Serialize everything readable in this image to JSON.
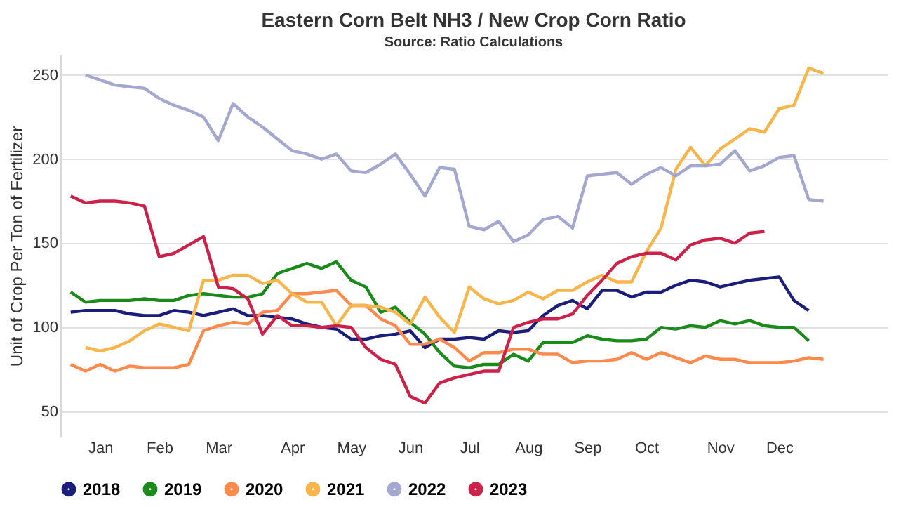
{
  "chart_data": {
    "type": "line",
    "title": "Eastern Corn Belt NH3 / New Crop Corn Ratio",
    "subtitle": "Source: Ratio Calculations",
    "ylabel": "Unit of Crop Per Ton of Fertilizer",
    "categories": [
      null,
      null,
      "Jan",
      null,
      null,
      null,
      "Feb",
      null,
      null,
      null,
      "Mar",
      null,
      null,
      null,
      null,
      "Apr",
      null,
      null,
      null,
      "May",
      null,
      null,
      null,
      "Jun",
      null,
      null,
      null,
      "Jul",
      null,
      null,
      null,
      "Aug",
      null,
      null,
      null,
      "Sep",
      null,
      null,
      null,
      "Oct",
      null,
      null,
      null,
      null,
      "Nov",
      null,
      null,
      null,
      "Dec",
      null,
      null,
      null
    ],
    "ylim": [
      35,
      262
    ],
    "yticks": [
      50,
      100,
      150,
      200,
      250
    ],
    "grid": "y",
    "legend": "bottom",
    "marker": "none",
    "line_style": "solid",
    "series": [
      {
        "name": "2018",
        "color": "#1b1d7a",
        "values": [
          109,
          110,
          110,
          110,
          108,
          107,
          107,
          110,
          109,
          107,
          109,
          111,
          107,
          107,
          106,
          105,
          102,
          100,
          99,
          93,
          93,
          95,
          96,
          98,
          88,
          93,
          93,
          94,
          93,
          98,
          97,
          98,
          107,
          113,
          116,
          111,
          122,
          122,
          118,
          121,
          121,
          125,
          128,
          127,
          124,
          126,
          128,
          129,
          130,
          116,
          110,
          null
        ]
      },
      {
        "name": "2019",
        "color": "#1a8a1a",
        "values": [
          121,
          115,
          116,
          116,
          116,
          117,
          116,
          116,
          119,
          120,
          119,
          118,
          118,
          120,
          132,
          135,
          138,
          135,
          139,
          128,
          124,
          109,
          112,
          103,
          96,
          85,
          77,
          76,
          78,
          78,
          84,
          80,
          91,
          91,
          91,
          95,
          93,
          92,
          92,
          93,
          100,
          99,
          101,
          100,
          104,
          102,
          104,
          101,
          100,
          100,
          92,
          null
        ]
      },
      {
        "name": "2020",
        "color": "#ff8a4c",
        "values": [
          78,
          74,
          78,
          74,
          77,
          76,
          76,
          76,
          78,
          98,
          101,
          103,
          102,
          109,
          110,
          120,
          120,
          121,
          122,
          113,
          113,
          105,
          101,
          90,
          90,
          93,
          88,
          80,
          85,
          85,
          87,
          87,
          84,
          84,
          79,
          80,
          80,
          81,
          85,
          81,
          85,
          82,
          79,
          83,
          81,
          81,
          79,
          79,
          79,
          80,
          82,
          81
        ]
      },
      {
        "name": "2021",
        "color": "#f7b54c",
        "values": [
          null,
          88,
          86,
          88,
          92,
          98,
          102,
          100,
          98,
          128,
          128,
          131,
          131,
          126,
          128,
          120,
          115,
          115,
          101,
          113,
          113,
          112,
          109,
          102,
          118,
          106,
          97,
          124,
          117,
          114,
          116,
          121,
          117,
          122,
          122,
          127,
          131,
          127,
          127,
          145,
          159,
          194,
          207,
          196,
          206,
          212,
          218,
          216,
          230,
          232,
          254,
          251
        ]
      },
      {
        "name": "2022",
        "color": "#a4a7cf",
        "values": [
          null,
          250,
          247,
          244,
          243,
          242,
          236,
          232,
          229,
          225,
          211,
          233,
          225,
          219,
          212,
          205,
          203,
          200,
          203,
          193,
          192,
          197,
          203,
          191,
          178,
          195,
          194,
          160,
          158,
          163,
          151,
          155,
          164,
          166,
          159,
          190,
          191,
          192,
          185,
          191,
          195,
          190,
          196,
          196,
          197,
          205,
          193,
          196,
          201,
          202,
          176,
          175
        ]
      },
      {
        "name": "2023",
        "color": "#cc2149",
        "values": [
          178,
          174,
          175,
          175,
          174,
          172,
          142,
          144,
          149,
          154,
          124,
          123,
          117,
          96,
          107,
          101,
          101,
          100,
          101,
          100,
          88,
          81,
          78,
          59,
          55,
          67,
          70,
          72,
          74,
          74,
          100,
          103,
          105,
          105,
          108,
          119,
          128,
          138,
          142,
          144,
          144,
          140,
          149,
          152,
          153,
          150,
          156,
          157,
          null,
          null,
          null,
          null
        ]
      }
    ]
  }
}
